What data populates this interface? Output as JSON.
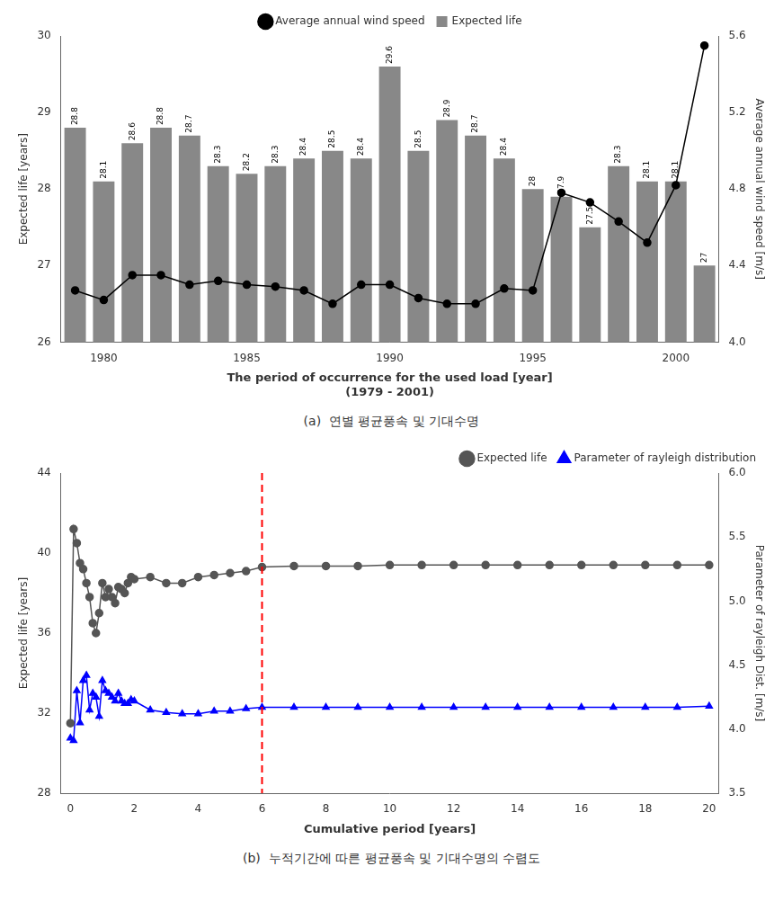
{
  "chart_data": [
    {
      "type": "bar",
      "categories": [
        null,
        1980,
        null,
        null,
        null,
        null,
        1985,
        null,
        null,
        null,
        null,
        1990,
        null,
        null,
        null,
        null,
        1995,
        null,
        null,
        null,
        null,
        2000,
        null
      ],
      "series": [
        {
          "name": "Average annual wind speed",
          "type": "line",
          "color": "#000000",
          "marker": "circle",
          "axis": "y2",
          "values": [
            4.27,
            4.22,
            4.35,
            4.35,
            4.3,
            4.32,
            4.3,
            4.29,
            4.27,
            4.2,
            4.3,
            4.3,
            4.23,
            4.2,
            4.2,
            4.28,
            4.27,
            4.78,
            4.73,
            4.63,
            4.52,
            4.82,
            5.55
          ]
        },
        {
          "name": "Expected life",
          "type": "bar",
          "color": "#888888",
          "data_labels": true,
          "values": [
            28.8,
            28.1,
            28.6,
            28.8,
            28.7,
            28.3,
            28.2,
            28.3,
            28.4,
            28.5,
            28.4,
            29.6,
            28.5,
            28.9,
            28.7,
            28.4,
            28.0,
            27.9,
            27.5,
            28.3,
            28.1,
            28.1,
            27.0
          ]
        }
      ],
      "x_label": [
        "The period of occurrence for the used load [year]",
        "(1979 - 2001)"
      ],
      "y_label": "Expected life [years]",
      "y2_label": "Average annual wind speed [m/s]",
      "ylim": [
        26,
        30
      ],
      "yticks": [
        26,
        27,
        28,
        29,
        30
      ],
      "y2lim": [
        4.0,
        5.6
      ],
      "y2ticks": [
        {
          "value": 4.0,
          "label": "4.0"
        },
        4.4,
        4.8,
        5.2,
        5.6
      ],
      "grid": false,
      "legend": "upper center",
      "caption": "(a)  연별 평균풍속 및 기대수명"
    },
    {
      "type": "line",
      "x": [
        0.0,
        0.1,
        0.2,
        0.3,
        0.4,
        0.5,
        0.6,
        0.7,
        0.8,
        0.9,
        1.0,
        1.1,
        1.2,
        1.3,
        1.4,
        1.5,
        1.6,
        1.7,
        1.8,
        1.9,
        2.0,
        2.5,
        3.0,
        3.5,
        4.0,
        4.5,
        5.0,
        5.5,
        6.0,
        7.0,
        8.0,
        9.0,
        10.0,
        11.0,
        12.0,
        13.0,
        14.0,
        15.0,
        16.0,
        17.0,
        18.0,
        19.0,
        20.0
      ],
      "series": [
        {
          "name": "Expected life",
          "color": "#555555",
          "marker": "circle",
          "values": [
            31.5,
            41.2,
            40.5,
            39.5,
            39.2,
            38.5,
            37.8,
            36.5,
            36.0,
            37.0,
            38.5,
            37.8,
            38.2,
            37.8,
            37.5,
            38.3,
            38.2,
            38.0,
            38.5,
            38.8,
            38.7,
            38.8,
            38.5,
            38.5,
            38.8,
            38.9,
            39.0,
            39.1,
            39.3,
            39.35,
            39.35,
            39.35,
            39.4,
            39.4,
            39.4,
            39.4,
            39.4,
            39.4,
            39.4,
            39.4,
            39.4,
            39.4,
            39.4
          ]
        },
        {
          "name": "Parameter of rayleigh distribution",
          "color": "#0000ff",
          "marker": "triangle",
          "axis": "y2",
          "values": [
            3.93,
            3.91,
            4.3,
            4.05,
            4.38,
            4.42,
            4.15,
            4.28,
            4.25,
            4.1,
            4.38,
            4.3,
            4.28,
            4.25,
            4.22,
            4.28,
            4.22,
            4.2,
            4.2,
            4.23,
            4.22,
            4.15,
            4.13,
            4.12,
            4.12,
            4.14,
            4.14,
            4.16,
            4.17,
            4.17,
            4.17,
            4.17,
            4.17,
            4.17,
            4.17,
            4.17,
            4.17,
            4.17,
            4.17,
            4.17,
            4.17,
            4.17,
            4.18
          ]
        }
      ],
      "vlines": [
        {
          "x": 6.0,
          "color": "#ff0000",
          "line_style": "dashed"
        }
      ],
      "x_label": "Cumulative period [years]",
      "y_label": "Expected life [years]",
      "y2_label": "Parameter of rayleigh Dist. [m/s]",
      "xlim": [
        -0.3,
        20.3
      ],
      "xticks": [
        0,
        2,
        4,
        6,
        8,
        10,
        12,
        14,
        16,
        18,
        20
      ],
      "ylim": [
        28,
        44
      ],
      "yticks": [
        28,
        32,
        36,
        40,
        44
      ],
      "y2lim": [
        3.5,
        6.0
      ],
      "y2ticks": [
        3.5,
        {
          "value": 4.0,
          "label": "4.0"
        },
        4.5,
        {
          "value": 5.0,
          "label": "5.0"
        },
        5.5,
        {
          "value": 6.0,
          "label": "6.0"
        }
      ],
      "grid": false,
      "legend": "upper right",
      "caption": "(b)  누적기간에 따른 평균풍속 및 기대수명의 수렴도"
    }
  ]
}
